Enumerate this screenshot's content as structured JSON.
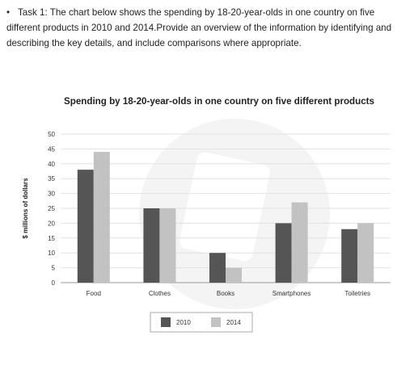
{
  "task": {
    "bullet": "•",
    "text": "Task 1: The chart below shows the spending by 18-20-year-olds in one country on five different products in 2010 and 2014.Provide an overview of the information by identifying and describing the key details, and include comparisons where appropriate."
  },
  "chart_data": {
    "type": "bar",
    "title": "Spending by 18-20-year-olds in one country on five different products",
    "xlabel": "",
    "ylabel": "$ millions of dollars",
    "categories": [
      "Food",
      "Clothes",
      "Books",
      "Smartphones",
      "Toiletries"
    ],
    "series": [
      {
        "name": "2010",
        "values": [
          38,
          25,
          10,
          20,
          18
        ],
        "color": "#555555"
      },
      {
        "name": "2014",
        "values": [
          44,
          25,
          5,
          27,
          20
        ],
        "color": "#c2c2c2"
      }
    ],
    "ylim": [
      0,
      50
    ],
    "yticks": [
      "0",
      "5",
      "10",
      "15",
      "20",
      "25",
      "30",
      "35",
      "40",
      "45",
      "50"
    ],
    "grid": true,
    "legend_position": "bottom"
  }
}
